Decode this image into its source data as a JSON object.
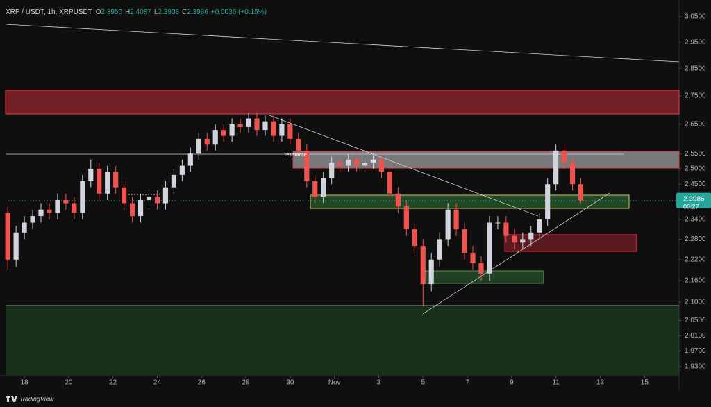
{
  "chart_data": {
    "type": "candlestick",
    "header": {
      "symbol": "XRP / USDT, 1h, XRPUSDT",
      "fields": [
        {
          "label": "O",
          "value": "2.3950"
        },
        {
          "label": "H",
          "value": "2.4087"
        },
        {
          "label": "L",
          "value": "2.3908"
        },
        {
          "label": "C",
          "value": "2.3986"
        }
      ],
      "change": "+0.0036 (+0.15%)"
    },
    "annotation": "resistance",
    "brand": "TradingView",
    "last_price": {
      "value": 2.3986,
      "label": "2.3986"
    },
    "countdown": "00:27",
    "up_color": "#d1d4dc",
    "down_color": "#ef5350",
    "log_scale": true,
    "x": [
      -0.75,
      -0.375,
      0,
      0.375,
      0.75,
      1.125,
      1.5,
      1.875,
      2.25,
      2.625,
      3,
      3.375,
      3.75,
      4.125,
      4.5,
      4.875,
      5.25,
      5.625,
      6,
      6.375,
      6.75,
      7.125,
      7.5,
      7.875,
      8.25,
      8.625,
      9,
      9.375,
      9.75,
      10.125,
      10.5,
      10.875,
      11.25,
      11.625,
      12,
      12.375,
      12.75,
      13.125,
      13.5,
      13.875,
      14.25,
      14.625,
      15,
      15.375,
      15.75,
      16.125,
      16.5,
      16.875,
      17.25,
      17.625,
      18,
      18.375,
      18.75,
      19.125,
      19.5,
      19.875,
      20.25,
      20.625,
      21,
      21.375,
      21.75,
      22.125,
      22.5,
      22.875,
      23.25,
      23.625,
      24,
      24.375,
      24.75,
      25.125
    ],
    "open": [
      2.36,
      2.22,
      2.3,
      2.33,
      2.35,
      2.37,
      2.36,
      2.4,
      2.39,
      2.36,
      2.46,
      2.5,
      2.42,
      2.49,
      2.44,
      2.39,
      2.35,
      2.4,
      2.41,
      2.39,
      2.44,
      2.48,
      2.51,
      2.55,
      2.6,
      2.58,
      2.63,
      2.61,
      2.65,
      2.64,
      2.67,
      2.63,
      2.66,
      2.61,
      2.65,
      2.6,
      2.56,
      2.46,
      2.41,
      2.47,
      2.52,
      2.51,
      2.53,
      2.51,
      2.52,
      2.53,
      2.49,
      2.42,
      2.38,
      2.31,
      2.26,
      2.15,
      2.22,
      2.28,
      2.37,
      2.31,
      2.24,
      2.21,
      2.18,
      2.33,
      2.33,
      2.29,
      2.27,
      2.28,
      2.3,
      2.34,
      2.45,
      2.56,
      2.52,
      2.45
    ],
    "high": [
      2.38,
      2.32,
      2.35,
      2.37,
      2.39,
      2.39,
      2.42,
      2.42,
      2.41,
      2.48,
      2.53,
      2.52,
      2.51,
      2.51,
      2.46,
      2.41,
      2.42,
      2.43,
      2.43,
      2.46,
      2.5,
      2.53,
      2.57,
      2.62,
      2.62,
      2.65,
      2.65,
      2.67,
      2.67,
      2.69,
      2.69,
      2.68,
      2.68,
      2.67,
      2.67,
      2.62,
      2.58,
      2.48,
      2.49,
      2.54,
      2.54,
      2.55,
      2.55,
      2.54,
      2.55,
      2.55,
      2.51,
      2.44,
      2.4,
      2.33,
      2.28,
      2.24,
      2.3,
      2.39,
      2.39,
      2.33,
      2.26,
      2.23,
      2.35,
      2.35,
      2.35,
      2.31,
      2.3,
      2.32,
      2.36,
      2.47,
      2.58,
      2.58,
      2.54,
      2.47
    ],
    "low": [
      2.19,
      2.2,
      2.28,
      2.31,
      2.33,
      2.34,
      2.34,
      2.37,
      2.34,
      2.34,
      2.44,
      2.4,
      2.4,
      2.42,
      2.37,
      2.33,
      2.33,
      2.38,
      2.37,
      2.37,
      2.42,
      2.46,
      2.49,
      2.53,
      2.56,
      2.56,
      2.59,
      2.59,
      2.62,
      2.62,
      2.61,
      2.61,
      2.59,
      2.59,
      2.58,
      2.54,
      2.44,
      2.39,
      2.39,
      2.45,
      2.49,
      2.49,
      2.49,
      2.49,
      2.5,
      2.47,
      2.4,
      2.36,
      2.29,
      2.24,
      2.09,
      2.13,
      2.2,
      2.26,
      2.29,
      2.22,
      2.19,
      2.16,
      2.16,
      2.31,
      2.27,
      2.25,
      2.25,
      2.26,
      2.28,
      2.32,
      2.43,
      2.5,
      2.43,
      2.39
    ],
    "close": [
      2.22,
      2.3,
      2.33,
      2.35,
      2.37,
      2.36,
      2.4,
      2.39,
      2.36,
      2.46,
      2.5,
      2.42,
      2.49,
      2.44,
      2.39,
      2.35,
      2.4,
      2.41,
      2.39,
      2.44,
      2.48,
      2.51,
      2.55,
      2.6,
      2.58,
      2.63,
      2.61,
      2.65,
      2.64,
      2.67,
      2.63,
      2.66,
      2.61,
      2.65,
      2.6,
      2.56,
      2.46,
      2.41,
      2.47,
      2.52,
      2.51,
      2.53,
      2.51,
      2.52,
      2.53,
      2.49,
      2.42,
      2.38,
      2.31,
      2.26,
      2.15,
      2.22,
      2.28,
      2.37,
      2.31,
      2.24,
      2.21,
      2.18,
      2.33,
      2.33,
      2.29,
      2.27,
      2.28,
      2.3,
      2.34,
      2.45,
      2.56,
      2.52,
      2.45,
      2.3986
    ],
    "xlim": [
      -1.1,
      29.56
    ],
    "xticks": [
      {
        "value": 0,
        "label": "18"
      },
      {
        "value": 2,
        "label": "20"
      },
      {
        "value": 4,
        "label": "22"
      },
      {
        "value": 6,
        "label": "24"
      },
      {
        "value": 8,
        "label": "26"
      },
      {
        "value": 10,
        "label": "28"
      },
      {
        "value": 12,
        "label": "30"
      },
      {
        "value": 14,
        "label": "Nov"
      },
      {
        "value": 16,
        "label": "3"
      },
      {
        "value": 18,
        "label": "5"
      },
      {
        "value": 20,
        "label": "7"
      },
      {
        "value": 22,
        "label": "9"
      },
      {
        "value": 24,
        "label": "11"
      },
      {
        "value": 26,
        "label": "13"
      },
      {
        "value": 28,
        "label": "15"
      }
    ],
    "ylim": [
      1.909,
      3.089
    ],
    "yticks": [
      {
        "value": 3.05,
        "label": "3.0500"
      },
      {
        "value": 2.95,
        "label": "2.9500"
      },
      {
        "value": 2.85,
        "label": "2.8500"
      },
      {
        "value": 2.75,
        "label": "2.7500"
      },
      {
        "value": 2.65,
        "label": "2.6500"
      },
      {
        "value": 2.55,
        "label": "2.5500"
      },
      {
        "value": 2.5,
        "label": "2.5000"
      },
      {
        "value": 2.45,
        "label": "2.4500"
      },
      {
        "value": 2.34,
        "label": "2.3400"
      },
      {
        "value": 2.28,
        "label": "2.2800"
      },
      {
        "value": 2.22,
        "label": "2.2200"
      },
      {
        "value": 2.16,
        "label": "2.1600"
      },
      {
        "value": 2.1,
        "label": "2.1000"
      },
      {
        "value": 2.05,
        "label": "2.0500"
      },
      {
        "value": 2.01,
        "label": "2.0100"
      },
      {
        "value": 1.97,
        "label": "1.9700"
      },
      {
        "value": 1.93,
        "label": "1.9300"
      }
    ]
  }
}
